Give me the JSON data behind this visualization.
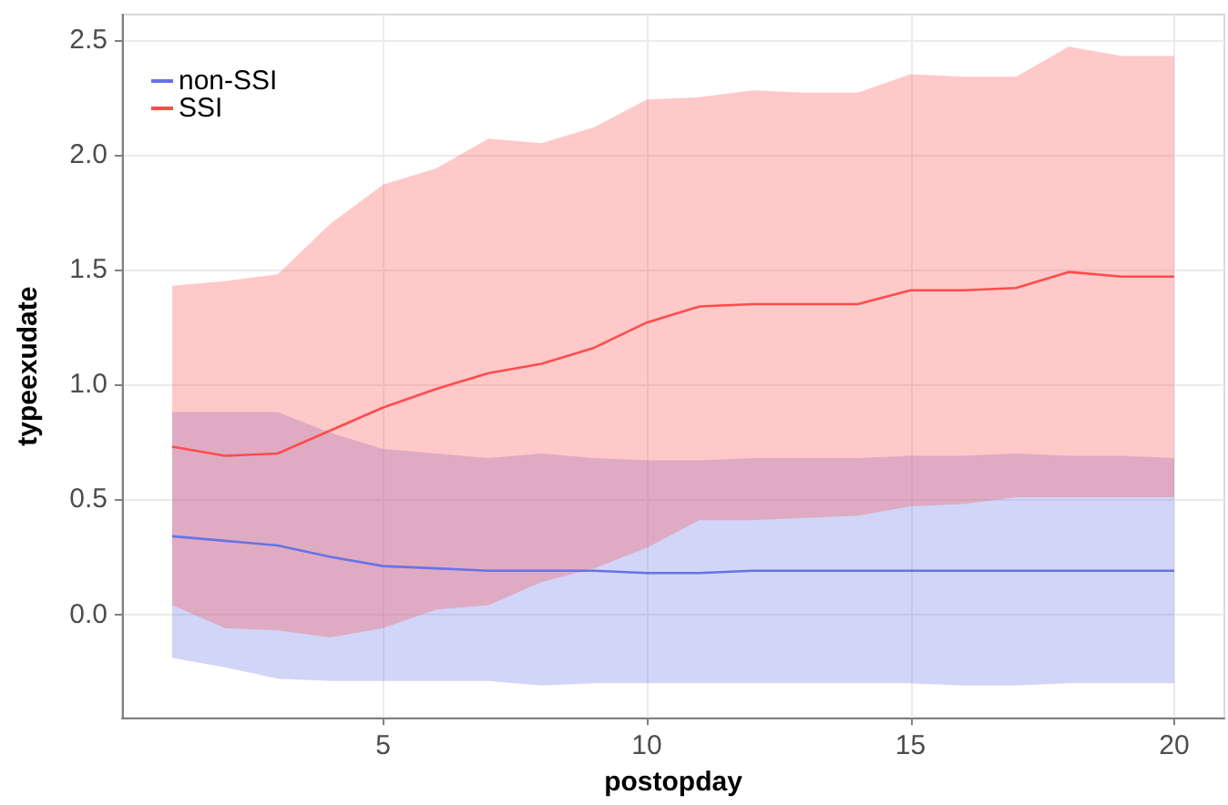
{
  "chart_data": {
    "type": "line",
    "xlabel": "postopday",
    "ylabel": "typeexudate",
    "x": [
      1,
      2,
      3,
      4,
      5,
      6,
      7,
      8,
      9,
      10,
      11,
      12,
      13,
      14,
      15,
      16,
      17,
      18,
      19,
      20
    ],
    "series": [
      {
        "name": "non-SSI",
        "color": "#6673e6",
        "values": [
          0.34,
          0.32,
          0.3,
          0.25,
          0.21,
          0.2,
          0.19,
          0.19,
          0.19,
          0.18,
          0.18,
          0.19,
          0.19,
          0.19,
          0.19,
          0.19,
          0.19,
          0.19,
          0.19,
          0.19
        ],
        "lower": [
          -0.19,
          -0.23,
          -0.28,
          -0.29,
          -0.29,
          -0.29,
          -0.29,
          -0.31,
          -0.3,
          -0.3,
          -0.3,
          -0.3,
          -0.3,
          -0.3,
          -0.3,
          -0.31,
          -0.31,
          -0.3,
          -0.3,
          -0.3
        ],
        "upper": [
          0.88,
          0.88,
          0.88,
          0.79,
          0.72,
          0.7,
          0.68,
          0.7,
          0.68,
          0.67,
          0.67,
          0.68,
          0.68,
          0.68,
          0.69,
          0.69,
          0.7,
          0.69,
          0.69,
          0.68
        ]
      },
      {
        "name": "SSI",
        "color": "#ff4c4c",
        "values": [
          0.73,
          0.69,
          0.7,
          0.8,
          0.9,
          0.98,
          1.05,
          1.09,
          1.16,
          1.27,
          1.34,
          1.35,
          1.35,
          1.35,
          1.41,
          1.41,
          1.42,
          1.49,
          1.47,
          1.47
        ],
        "lower": [
          0.04,
          -0.06,
          -0.07,
          -0.1,
          -0.06,
          0.02,
          0.04,
          0.14,
          0.2,
          0.29,
          0.41,
          0.41,
          0.42,
          0.43,
          0.47,
          0.48,
          0.51,
          0.51,
          0.51,
          0.51
        ],
        "upper": [
          1.43,
          1.45,
          1.48,
          1.7,
          1.87,
          1.94,
          2.07,
          2.05,
          2.12,
          2.24,
          2.25,
          2.28,
          2.27,
          2.27,
          2.35,
          2.34,
          2.34,
          2.47,
          2.43,
          2.43
        ]
      }
    ],
    "xlim": [
      0.05,
      20.95
    ],
    "ylim": [
      -0.45,
      2.61
    ],
    "xticks": [
      5,
      10,
      15,
      20
    ],
    "yticks": [
      {
        "value": 0,
        "label": "0.0"
      },
      {
        "value": 0.5,
        "label": "0.5"
      },
      {
        "value": 1,
        "label": "1.0"
      },
      {
        "value": 1.5,
        "label": "1.5"
      },
      {
        "value": 2,
        "label": "2.0"
      },
      {
        "value": 2.5,
        "label": "2.5"
      }
    ],
    "grid": true,
    "legend": "top left",
    "marker": "none",
    "line_style": "solid"
  }
}
